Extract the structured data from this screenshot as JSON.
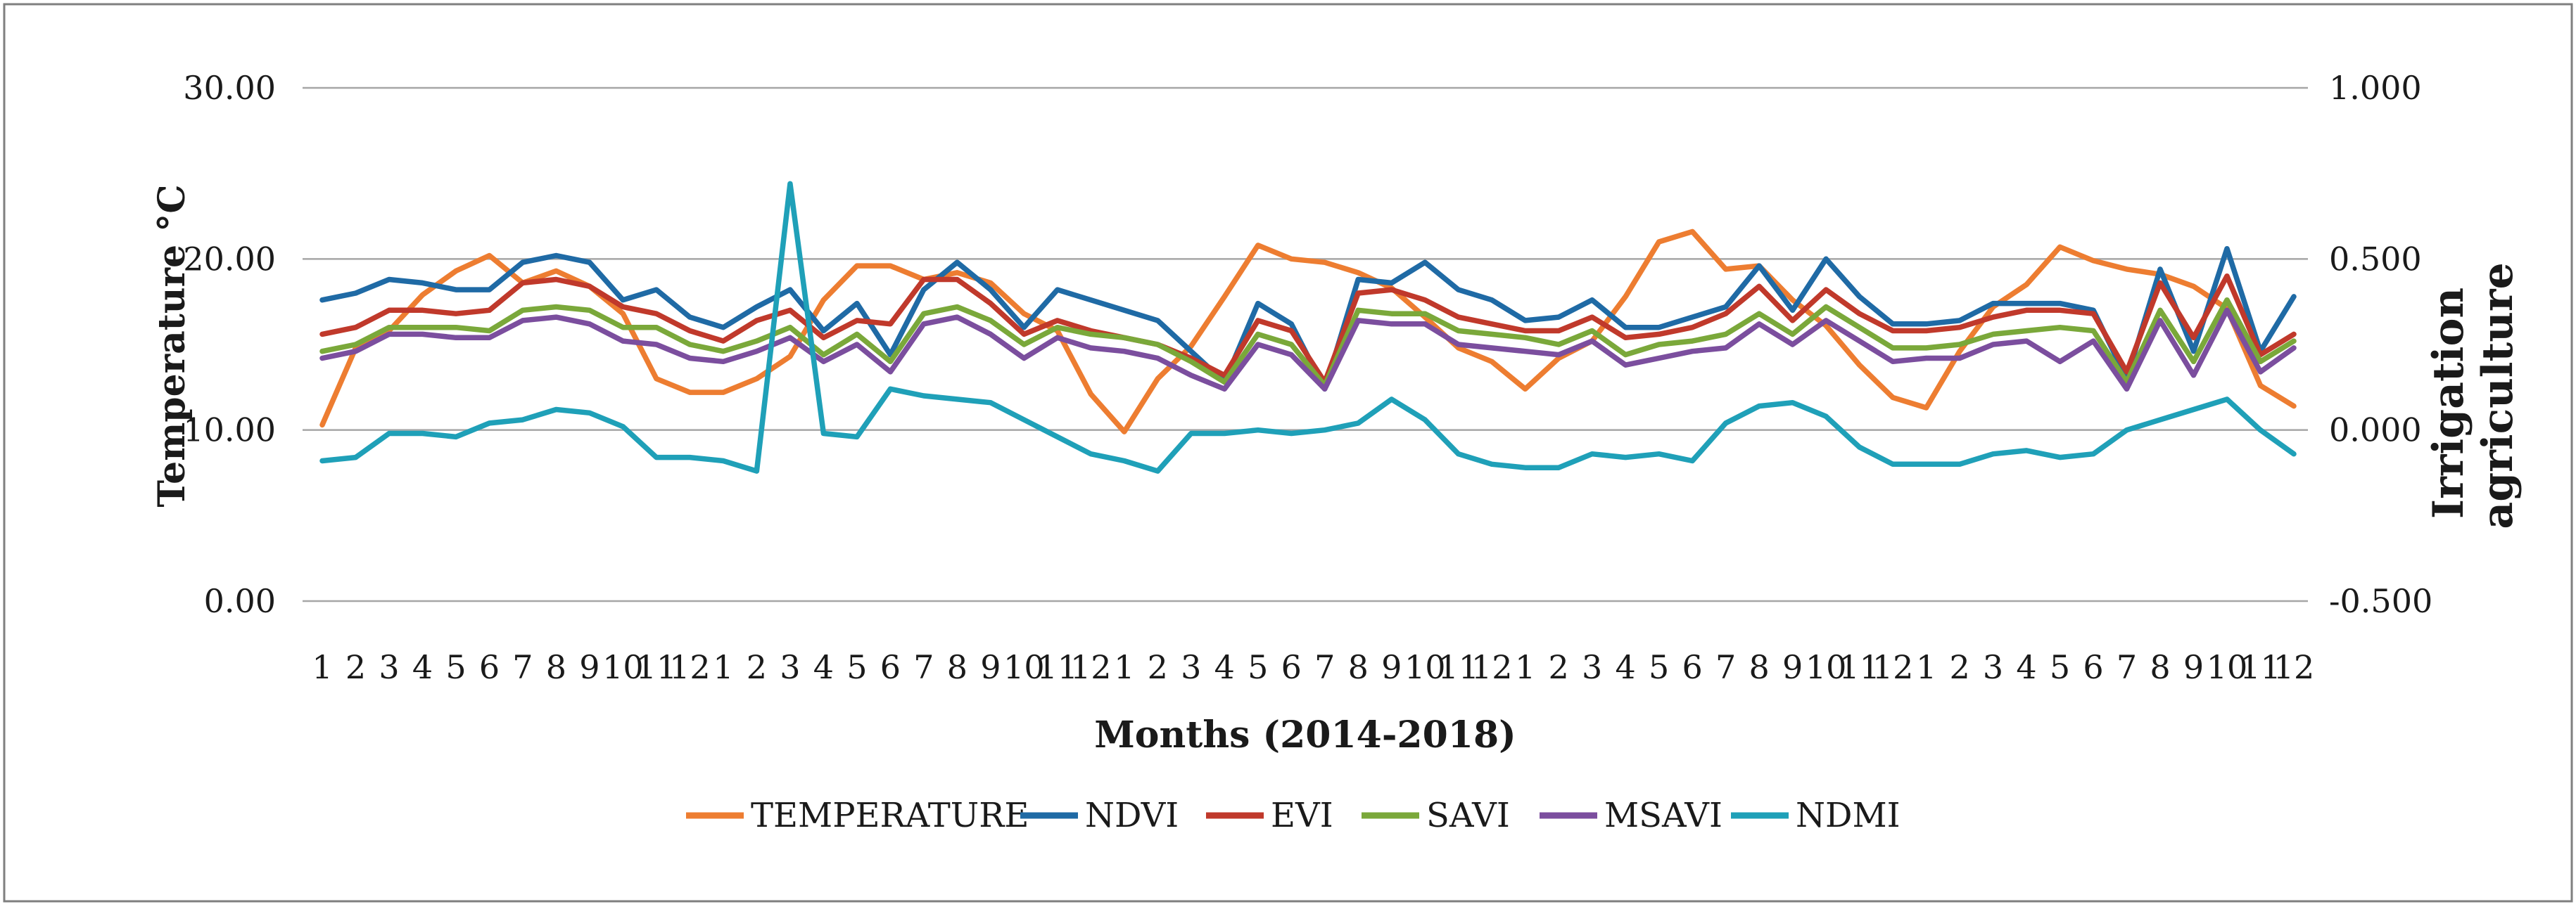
{
  "chart_data": {
    "type": "line",
    "title": "",
    "xlabel": "Months (2014-2018)",
    "ylabel_left": "Temperature °C",
    "ylabel_right_lines": [
      "Irrigation",
      "agriculture"
    ],
    "ylim_left": [
      0,
      30
    ],
    "ylim_right": [
      -0.5,
      1.0
    ],
    "yticks_left": [
      "0.00",
      "10.00",
      "20.00",
      "30.00"
    ],
    "yticks_right": [
      "-0.500",
      "0.000",
      "0.500",
      "1.000"
    ],
    "grid": true,
    "legend_position": "bottom",
    "categories": [
      "1",
      "2",
      "3",
      "4",
      "5",
      "6",
      "7",
      "8",
      "9",
      "10",
      "11",
      "12",
      "1",
      "2",
      "3",
      "4",
      "5",
      "6",
      "7",
      "8",
      "9",
      "10",
      "11",
      "12",
      "1",
      "2",
      "3",
      "4",
      "5",
      "6",
      "7",
      "8",
      "9",
      "10",
      "11",
      "12",
      "1",
      "2",
      "3",
      "4",
      "5",
      "6",
      "7",
      "8",
      "9",
      "10",
      "11",
      "12",
      "1",
      "2",
      "3",
      "4",
      "5",
      "6",
      "7",
      "8",
      "9",
      "10",
      "11",
      "12"
    ],
    "series": [
      {
        "name": "TEMPERATURE",
        "axis": "left",
        "color": "#ED7D31",
        "values": [
          10.3,
          14.8,
          15.8,
          17.9,
          19.3,
          20.2,
          18.6,
          19.3,
          18.4,
          16.8,
          13.0,
          12.2,
          12.2,
          13.0,
          14.3,
          17.6,
          19.6,
          19.6,
          18.8,
          19.2,
          18.6,
          16.8,
          15.8,
          12.1,
          9.9,
          13.0,
          14.9,
          17.8,
          20.8,
          20.0,
          19.8,
          19.2,
          18.3,
          16.6,
          14.8,
          14.0,
          12.4,
          14.2,
          15.2,
          17.8,
          21.0,
          21.6,
          19.4,
          19.6,
          17.6,
          16.1,
          13.8,
          11.9,
          11.3,
          14.6,
          17.2,
          18.5,
          20.7,
          19.9,
          19.4,
          19.1,
          18.4,
          17.1,
          12.6,
          11.4
        ]
      },
      {
        "name": "NDVI",
        "axis": "right",
        "color": "#1F6AA5",
        "values": [
          0.38,
          0.4,
          0.44,
          0.43,
          0.41,
          0.41,
          0.49,
          0.51,
          0.49,
          0.38,
          0.41,
          0.33,
          0.3,
          0.36,
          0.41,
          0.29,
          0.37,
          0.22,
          0.41,
          0.49,
          0.41,
          0.3,
          0.41,
          0.38,
          0.35,
          0.32,
          0.23,
          0.14,
          0.37,
          0.31,
          0.12,
          0.44,
          0.43,
          0.49,
          0.41,
          0.38,
          0.32,
          0.33,
          0.38,
          0.3,
          0.3,
          0.33,
          0.36,
          0.48,
          0.35,
          0.5,
          0.39,
          0.31,
          0.31,
          0.32,
          0.37,
          0.37,
          0.37,
          0.35,
          0.15,
          0.47,
          0.23,
          0.53,
          0.23,
          0.39
        ]
      },
      {
        "name": "EVI",
        "axis": "right",
        "color": "#C0392B",
        "values": [
          0.28,
          0.3,
          0.35,
          0.35,
          0.34,
          0.35,
          0.43,
          0.44,
          0.42,
          0.36,
          0.34,
          0.29,
          0.26,
          0.32,
          0.35,
          0.27,
          0.32,
          0.31,
          0.44,
          0.44,
          0.37,
          0.28,
          0.32,
          0.29,
          0.27,
          0.25,
          0.21,
          0.16,
          0.32,
          0.29,
          0.14,
          0.4,
          0.41,
          0.38,
          0.33,
          0.31,
          0.29,
          0.29,
          0.33,
          0.27,
          0.28,
          0.3,
          0.34,
          0.42,
          0.32,
          0.41,
          0.34,
          0.29,
          0.29,
          0.3,
          0.33,
          0.35,
          0.35,
          0.34,
          0.17,
          0.43,
          0.27,
          0.45,
          0.22,
          0.28
        ]
      },
      {
        "name": "SAVI",
        "axis": "right",
        "color": "#7AA83A",
        "values": [
          0.23,
          0.25,
          0.3,
          0.3,
          0.3,
          0.29,
          0.35,
          0.36,
          0.35,
          0.3,
          0.3,
          0.25,
          0.23,
          0.26,
          0.3,
          0.22,
          0.28,
          0.2,
          0.34,
          0.36,
          0.32,
          0.25,
          0.3,
          0.28,
          0.27,
          0.25,
          0.2,
          0.14,
          0.28,
          0.25,
          0.13,
          0.35,
          0.34,
          0.34,
          0.29,
          0.28,
          0.27,
          0.25,
          0.29,
          0.22,
          0.25,
          0.26,
          0.28,
          0.34,
          0.28,
          0.36,
          0.3,
          0.24,
          0.24,
          0.25,
          0.28,
          0.29,
          0.3,
          0.29,
          0.14,
          0.35,
          0.2,
          0.38,
          0.2,
          0.26
        ]
      },
      {
        "name": "MSAVI",
        "axis": "right",
        "color": "#7B4E9E",
        "values": [
          0.21,
          0.23,
          0.28,
          0.28,
          0.27,
          0.27,
          0.32,
          0.33,
          0.31,
          0.26,
          0.25,
          0.21,
          0.2,
          0.23,
          0.27,
          0.2,
          0.25,
          0.17,
          0.31,
          0.33,
          0.28,
          0.21,
          0.27,
          0.24,
          0.23,
          0.21,
          0.16,
          0.12,
          0.25,
          0.22,
          0.12,
          0.32,
          0.31,
          0.31,
          0.25,
          0.24,
          0.23,
          0.22,
          0.26,
          0.19,
          0.21,
          0.23,
          0.24,
          0.31,
          0.25,
          0.32,
          0.26,
          0.2,
          0.21,
          0.21,
          0.25,
          0.26,
          0.2,
          0.26,
          0.12,
          0.32,
          0.16,
          0.35,
          0.17,
          0.24
        ]
      },
      {
        "name": "NDMI",
        "axis": "right",
        "color": "#1FA0B8",
        "values": [
          -0.09,
          -0.08,
          -0.01,
          -0.01,
          -0.02,
          0.02,
          0.03,
          0.06,
          0.05,
          0.01,
          -0.08,
          -0.08,
          -0.09,
          -0.12,
          0.72,
          -0.01,
          -0.02,
          0.12,
          0.1,
          0.09,
          0.08,
          0.03,
          -0.02,
          -0.07,
          -0.09,
          -0.12,
          -0.01,
          -0.01,
          0.0,
          -0.01,
          0.0,
          0.02,
          0.09,
          0.03,
          -0.07,
          -0.1,
          -0.11,
          -0.11,
          -0.07,
          -0.08,
          -0.07,
          -0.09,
          0.02,
          0.07,
          0.08,
          0.04,
          -0.05,
          -0.1,
          -0.1,
          -0.1,
          -0.07,
          -0.06,
          -0.08,
          -0.07,
          0.0,
          0.03,
          0.06,
          0.09,
          0.0,
          -0.07
        ]
      }
    ]
  }
}
